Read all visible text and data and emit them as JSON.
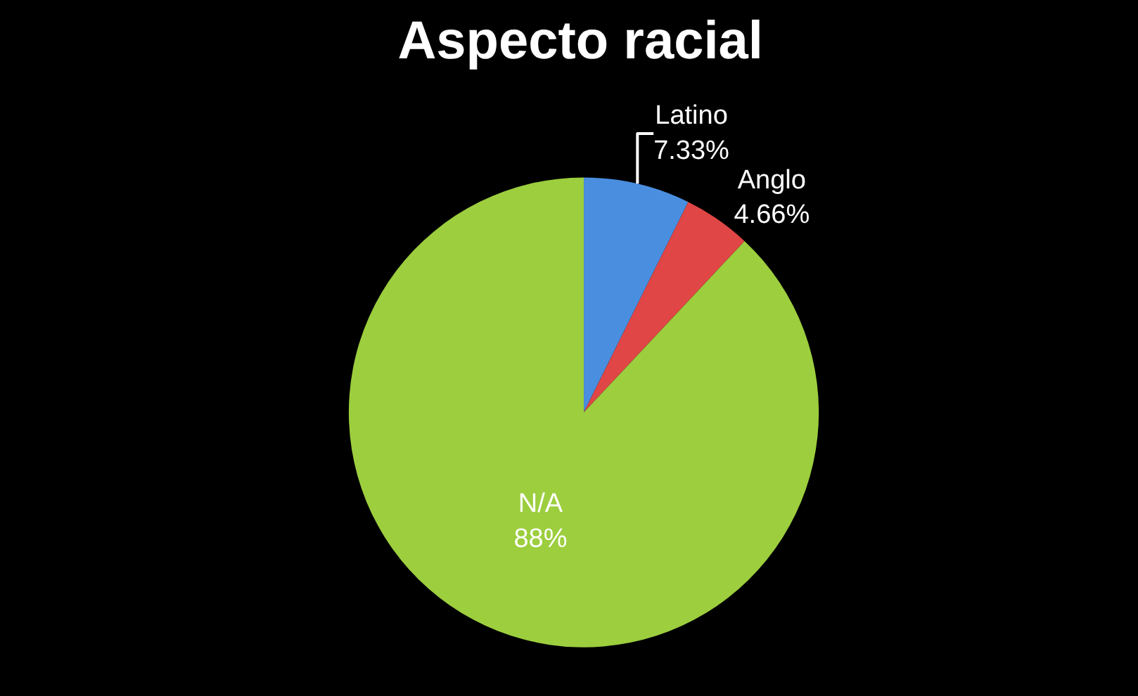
{
  "chart_data": {
    "type": "pie",
    "title": "Aspecto racial",
    "categories": [
      "Latino",
      "Anglo",
      "N/A"
    ],
    "values": [
      7.33,
      4.66,
      88
    ],
    "value_labels": [
      "7.33%",
      "4.66%",
      "88%"
    ],
    "colors": [
      "#4a8ee0",
      "#e04646",
      "#9cce3e"
    ],
    "legend": false
  }
}
